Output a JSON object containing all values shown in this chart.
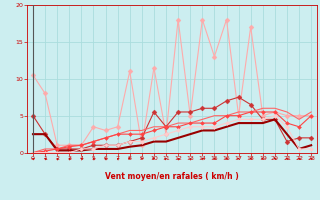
{
  "xlabel": "Vent moyen/en rafales ( km/h )",
  "background_color": "#cceef0",
  "grid_color": "#aadddd",
  "xlim": [
    -0.5,
    23.5
  ],
  "ylim": [
    0,
    20
  ],
  "yticks": [
    0,
    5,
    10,
    15,
    20
  ],
  "xticks": [
    0,
    1,
    2,
    3,
    4,
    5,
    6,
    7,
    8,
    9,
    10,
    11,
    12,
    13,
    14,
    15,
    16,
    17,
    18,
    19,
    20,
    21,
    22,
    23
  ],
  "series": [
    {
      "x": [
        0,
        1,
        2,
        3,
        4,
        5,
        6,
        7,
        8,
        9,
        10,
        11,
        12,
        13,
        14,
        15,
        16,
        17,
        18,
        19,
        20,
        21,
        22,
        23
      ],
      "y": [
        10.5,
        8.0,
        1.0,
        1.0,
        1.0,
        3.5,
        3.0,
        3.5,
        11.0,
        1.0,
        11.5,
        2.5,
        18.0,
        5.0,
        18.0,
        13.0,
        18.0,
        5.0,
        17.0,
        5.0,
        5.5,
        5.0,
        5.0,
        5.0
      ],
      "color": "#ffaaaa",
      "lw": 0.8,
      "marker": "D",
      "ms": 2.5
    },
    {
      "x": [
        0,
        1,
        2,
        3,
        4,
        5,
        6,
        7,
        8,
        9,
        10,
        11,
        12,
        13,
        14,
        15,
        16,
        17,
        18,
        19,
        20,
        21,
        22,
        23
      ],
      "y": [
        5.0,
        2.5,
        0.5,
        0.5,
        0.5,
        1.0,
        1.0,
        1.0,
        1.5,
        2.0,
        5.5,
        3.5,
        5.5,
        5.5,
        6.0,
        6.0,
        7.0,
        7.5,
        6.5,
        4.5,
        4.5,
        1.5,
        2.0,
        2.0
      ],
      "color": "#cc3333",
      "lw": 0.8,
      "marker": "D",
      "ms": 2.5
    },
    {
      "x": [
        0,
        1,
        2,
        3,
        4,
        5,
        6,
        7,
        8,
        9,
        10,
        11,
        12,
        13,
        14,
        15,
        16,
        17,
        18,
        19,
        20,
        21,
        22,
        23
      ],
      "y": [
        2.5,
        2.5,
        0.3,
        0.3,
        0.3,
        0.5,
        0.5,
        0.5,
        0.8,
        1.0,
        1.5,
        1.5,
        2.0,
        2.5,
        3.0,
        3.0,
        3.5,
        4.0,
        4.0,
        4.0,
        4.5,
        2.5,
        0.5,
        1.0
      ],
      "color": "#990000",
      "lw": 1.5,
      "marker": null,
      "ms": 0
    },
    {
      "x": [
        0,
        1,
        2,
        3,
        4,
        5,
        6,
        7,
        8,
        9,
        10,
        11,
        12,
        13,
        14,
        15,
        16,
        17,
        18,
        19,
        20,
        21,
        22,
        23
      ],
      "y": [
        0.0,
        0.5,
        0.5,
        1.0,
        1.0,
        1.5,
        2.0,
        2.5,
        3.0,
        3.0,
        3.5,
        3.5,
        4.0,
        4.0,
        4.5,
        5.0,
        5.0,
        5.5,
        5.5,
        6.0,
        6.0,
        5.5,
        4.5,
        5.5
      ],
      "color": "#ff6666",
      "lw": 0.8,
      "marker": null,
      "ms": 0
    },
    {
      "x": [
        0,
        1,
        2,
        3,
        4,
        5,
        6,
        7,
        8,
        9,
        10,
        11,
        12,
        13,
        14,
        15,
        16,
        17,
        18,
        19,
        20,
        21,
        22,
        23
      ],
      "y": [
        0.0,
        0.2,
        0.5,
        0.8,
        1.0,
        1.5,
        2.0,
        2.5,
        2.5,
        2.5,
        3.0,
        3.5,
        3.5,
        4.0,
        4.0,
        4.0,
        5.0,
        5.0,
        5.5,
        5.5,
        5.5,
        4.0,
        3.5,
        5.0
      ],
      "color": "#ff4444",
      "lw": 0.8,
      "marker": "D",
      "ms": 2.0
    },
    {
      "x": [
        0,
        1,
        2,
        3,
        4,
        5,
        6,
        7,
        8,
        9,
        10,
        11,
        12,
        13,
        14,
        15,
        16,
        17,
        18,
        19,
        20,
        21,
        22,
        23
      ],
      "y": [
        0.0,
        0.0,
        0.0,
        0.0,
        0.5,
        0.5,
        1.0,
        1.0,
        1.5,
        1.5,
        2.0,
        2.5,
        3.0,
        3.5,
        3.5,
        3.5,
        4.0,
        4.5,
        4.5,
        4.5,
        5.0,
        3.5,
        0.5,
        0.5
      ],
      "color": "#ffcccc",
      "lw": 0.8,
      "marker": "D",
      "ms": 2.0
    }
  ],
  "wind_directions": [
    225,
    225,
    210,
    215,
    210,
    215,
    215,
    215,
    60,
    75,
    65,
    135,
    215,
    210,
    225,
    245,
    240,
    255,
    245,
    255,
    245,
    240,
    240,
    240
  ]
}
